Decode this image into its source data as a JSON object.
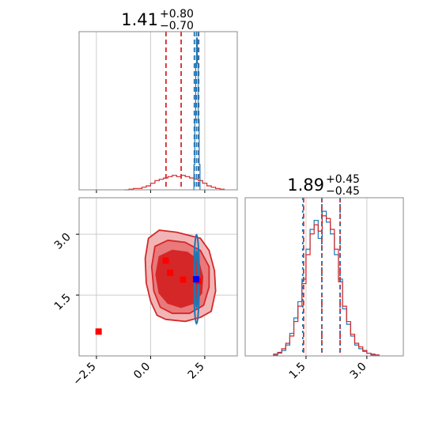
{
  "colors": {
    "red": "#d62728",
    "red_fill_outer": "#f2b5b6",
    "red_fill_mid": "#e9797b",
    "red_fill_inner": "#d62728",
    "blue": "#1f77b4",
    "marker_red": "#ff0000",
    "marker_blue": "#0000ff",
    "grid": "#cccccc",
    "frame": "#888888"
  },
  "chart_data": {
    "type": "corner",
    "grid": true,
    "params": [
      "p1",
      "p2"
    ],
    "panels": {
      "p1_hist": {
        "title_value": "1.41",
        "title_plus": "+0.80",
        "title_minus": "−0.70",
        "xlim": [
          -3.3,
          4.0
        ],
        "quantiles_red": [
          0.71,
          1.41,
          2.21
        ],
        "quantiles_blue": [
          2.02,
          2.12,
          2.22
        ],
        "red_hist": {
          "bins": [
            -1.2,
            -1.0,
            -0.8,
            -0.6,
            -0.4,
            -0.2,
            0.0,
            0.2,
            0.4,
            0.6,
            0.8,
            1.0,
            1.2,
            1.4,
            1.6,
            1.8,
            2.0,
            2.2,
            2.4,
            2.6,
            2.8,
            3.0,
            3.2,
            3.4
          ],
          "counts": [
            0,
            0.5,
            1,
            1,
            2,
            3,
            5,
            7,
            8,
            9,
            10,
            11,
            10,
            11,
            10,
            9,
            8,
            7,
            5,
            3,
            2,
            1,
            0.5,
            0
          ]
        },
        "blue_hist": {
          "bins": [
            1.96,
            2.0,
            2.04,
            2.08,
            2.12,
            2.16,
            2.2,
            2.24,
            2.28
          ],
          "counts": [
            0,
            20,
            55,
            100,
            120,
            100,
            55,
            20,
            0
          ]
        }
      },
      "p2_hist": {
        "title_value": "1.89",
        "title_plus": "+0.45",
        "title_minus": "−0.45",
        "xlim": [
          0.0,
          3.9
        ],
        "xticks": [
          "1.5",
          "3.0"
        ],
        "xtick_values": [
          1.5,
          3.0
        ],
        "quantiles_red": [
          1.44,
          1.89,
          2.34
        ],
        "quantiles_blue": [
          1.42,
          1.89,
          2.34
        ],
        "red_hist": {
          "bins": [
            0.7,
            0.8,
            0.9,
            1.0,
            1.1,
            1.2,
            1.3,
            1.4,
            1.5,
            1.6,
            1.7,
            1.8,
            1.9,
            2.0,
            2.1,
            2.2,
            2.3,
            2.4,
            2.5,
            2.6,
            2.7,
            2.8,
            2.9,
            3.0,
            3.1,
            3.2,
            3.3
          ],
          "counts": [
            2,
            4,
            8,
            14,
            22,
            38,
            55,
            80,
            112,
            135,
            145,
            138,
            155,
            152,
            140,
            118,
            82,
            55,
            38,
            24,
            14,
            10,
            6,
            3,
            2,
            1,
            0
          ]
        },
        "blue_hist": {
          "bins": [
            0.7,
            0.8,
            0.9,
            1.0,
            1.1,
            1.2,
            1.3,
            1.4,
            1.5,
            1.6,
            1.7,
            1.8,
            1.9,
            2.0,
            2.1,
            2.2,
            2.3,
            2.4,
            2.5,
            2.6,
            2.7,
            2.8,
            2.9,
            3.0,
            3.1,
            3.2,
            3.3
          ],
          "counts": [
            1,
            3,
            6,
            12,
            25,
            42,
            60,
            85,
            118,
            140,
            150,
            130,
            160,
            148,
            135,
            112,
            85,
            52,
            35,
            22,
            12,
            8,
            5,
            3,
            1,
            1,
            0
          ]
        }
      },
      "scatter_2d": {
        "xlim": [
          -3.3,
          4.0
        ],
        "ylim": [
          0.0,
          3.9
        ],
        "xticks": [
          "−2.5",
          "0.0",
          "2.5"
        ],
        "xtick_values": [
          -2.5,
          0.0,
          2.5
        ],
        "yticks": [
          "1.5",
          "3.0"
        ],
        "ytick_values": [
          1.5,
          3.0
        ],
        "red_markers": [
          [
            -2.4,
            0.6
          ],
          [
            0.7,
            2.35
          ],
          [
            0.9,
            2.05
          ],
          [
            1.5,
            1.88
          ],
          [
            2.2,
            1.85
          ]
        ],
        "blue_marker": [
          2.1,
          1.89
        ],
        "red_contours": [
          {
            "level": "outer",
            "points": [
              [
                -0.1,
                2.9
              ],
              [
                0.4,
                3.1
              ],
              [
                1.2,
                3.05
              ],
              [
                2.3,
                2.9
              ],
              [
                2.7,
                2.6
              ],
              [
                2.95,
                2.1
              ],
              [
                3.0,
                1.6
              ],
              [
                2.8,
                1.1
              ],
              [
                2.3,
                0.95
              ],
              [
                1.6,
                0.85
              ],
              [
                0.7,
                0.9
              ],
              [
                0.3,
                1.0
              ],
              [
                0.0,
                1.35
              ],
              [
                -0.2,
                1.8
              ],
              [
                -0.25,
                2.4
              ]
            ]
          },
          {
            "level": "mid",
            "points": [
              [
                0.2,
                2.7
              ],
              [
                0.8,
                2.85
              ],
              [
                1.6,
                2.8
              ],
              [
                2.3,
                2.6
              ],
              [
                2.7,
                2.2
              ],
              [
                2.7,
                1.7
              ],
              [
                2.45,
                1.25
              ],
              [
                1.8,
                1.05
              ],
              [
                1.0,
                1.05
              ],
              [
                0.45,
                1.2
              ],
              [
                0.15,
                1.6
              ],
              [
                0.05,
                2.2
              ]
            ]
          },
          {
            "level": "inner",
            "points": [
              [
                0.4,
                2.45
              ],
              [
                1.0,
                2.6
              ],
              [
                1.7,
                2.55
              ],
              [
                2.2,
                2.35
              ],
              [
                2.4,
                1.95
              ],
              [
                2.35,
                1.55
              ],
              [
                2.0,
                1.3
              ],
              [
                1.4,
                1.2
              ],
              [
                0.8,
                1.3
              ],
              [
                0.4,
                1.55
              ],
              [
                0.25,
                2.0
              ]
            ]
          }
        ],
        "blue_contours": [
          {
            "cx": 2.12,
            "cy": 1.89,
            "rx": 0.12,
            "ry": 1.1
          },
          {
            "cx": 2.12,
            "cy": 1.89,
            "rx": 0.06,
            "ry": 0.7
          }
        ]
      }
    }
  }
}
